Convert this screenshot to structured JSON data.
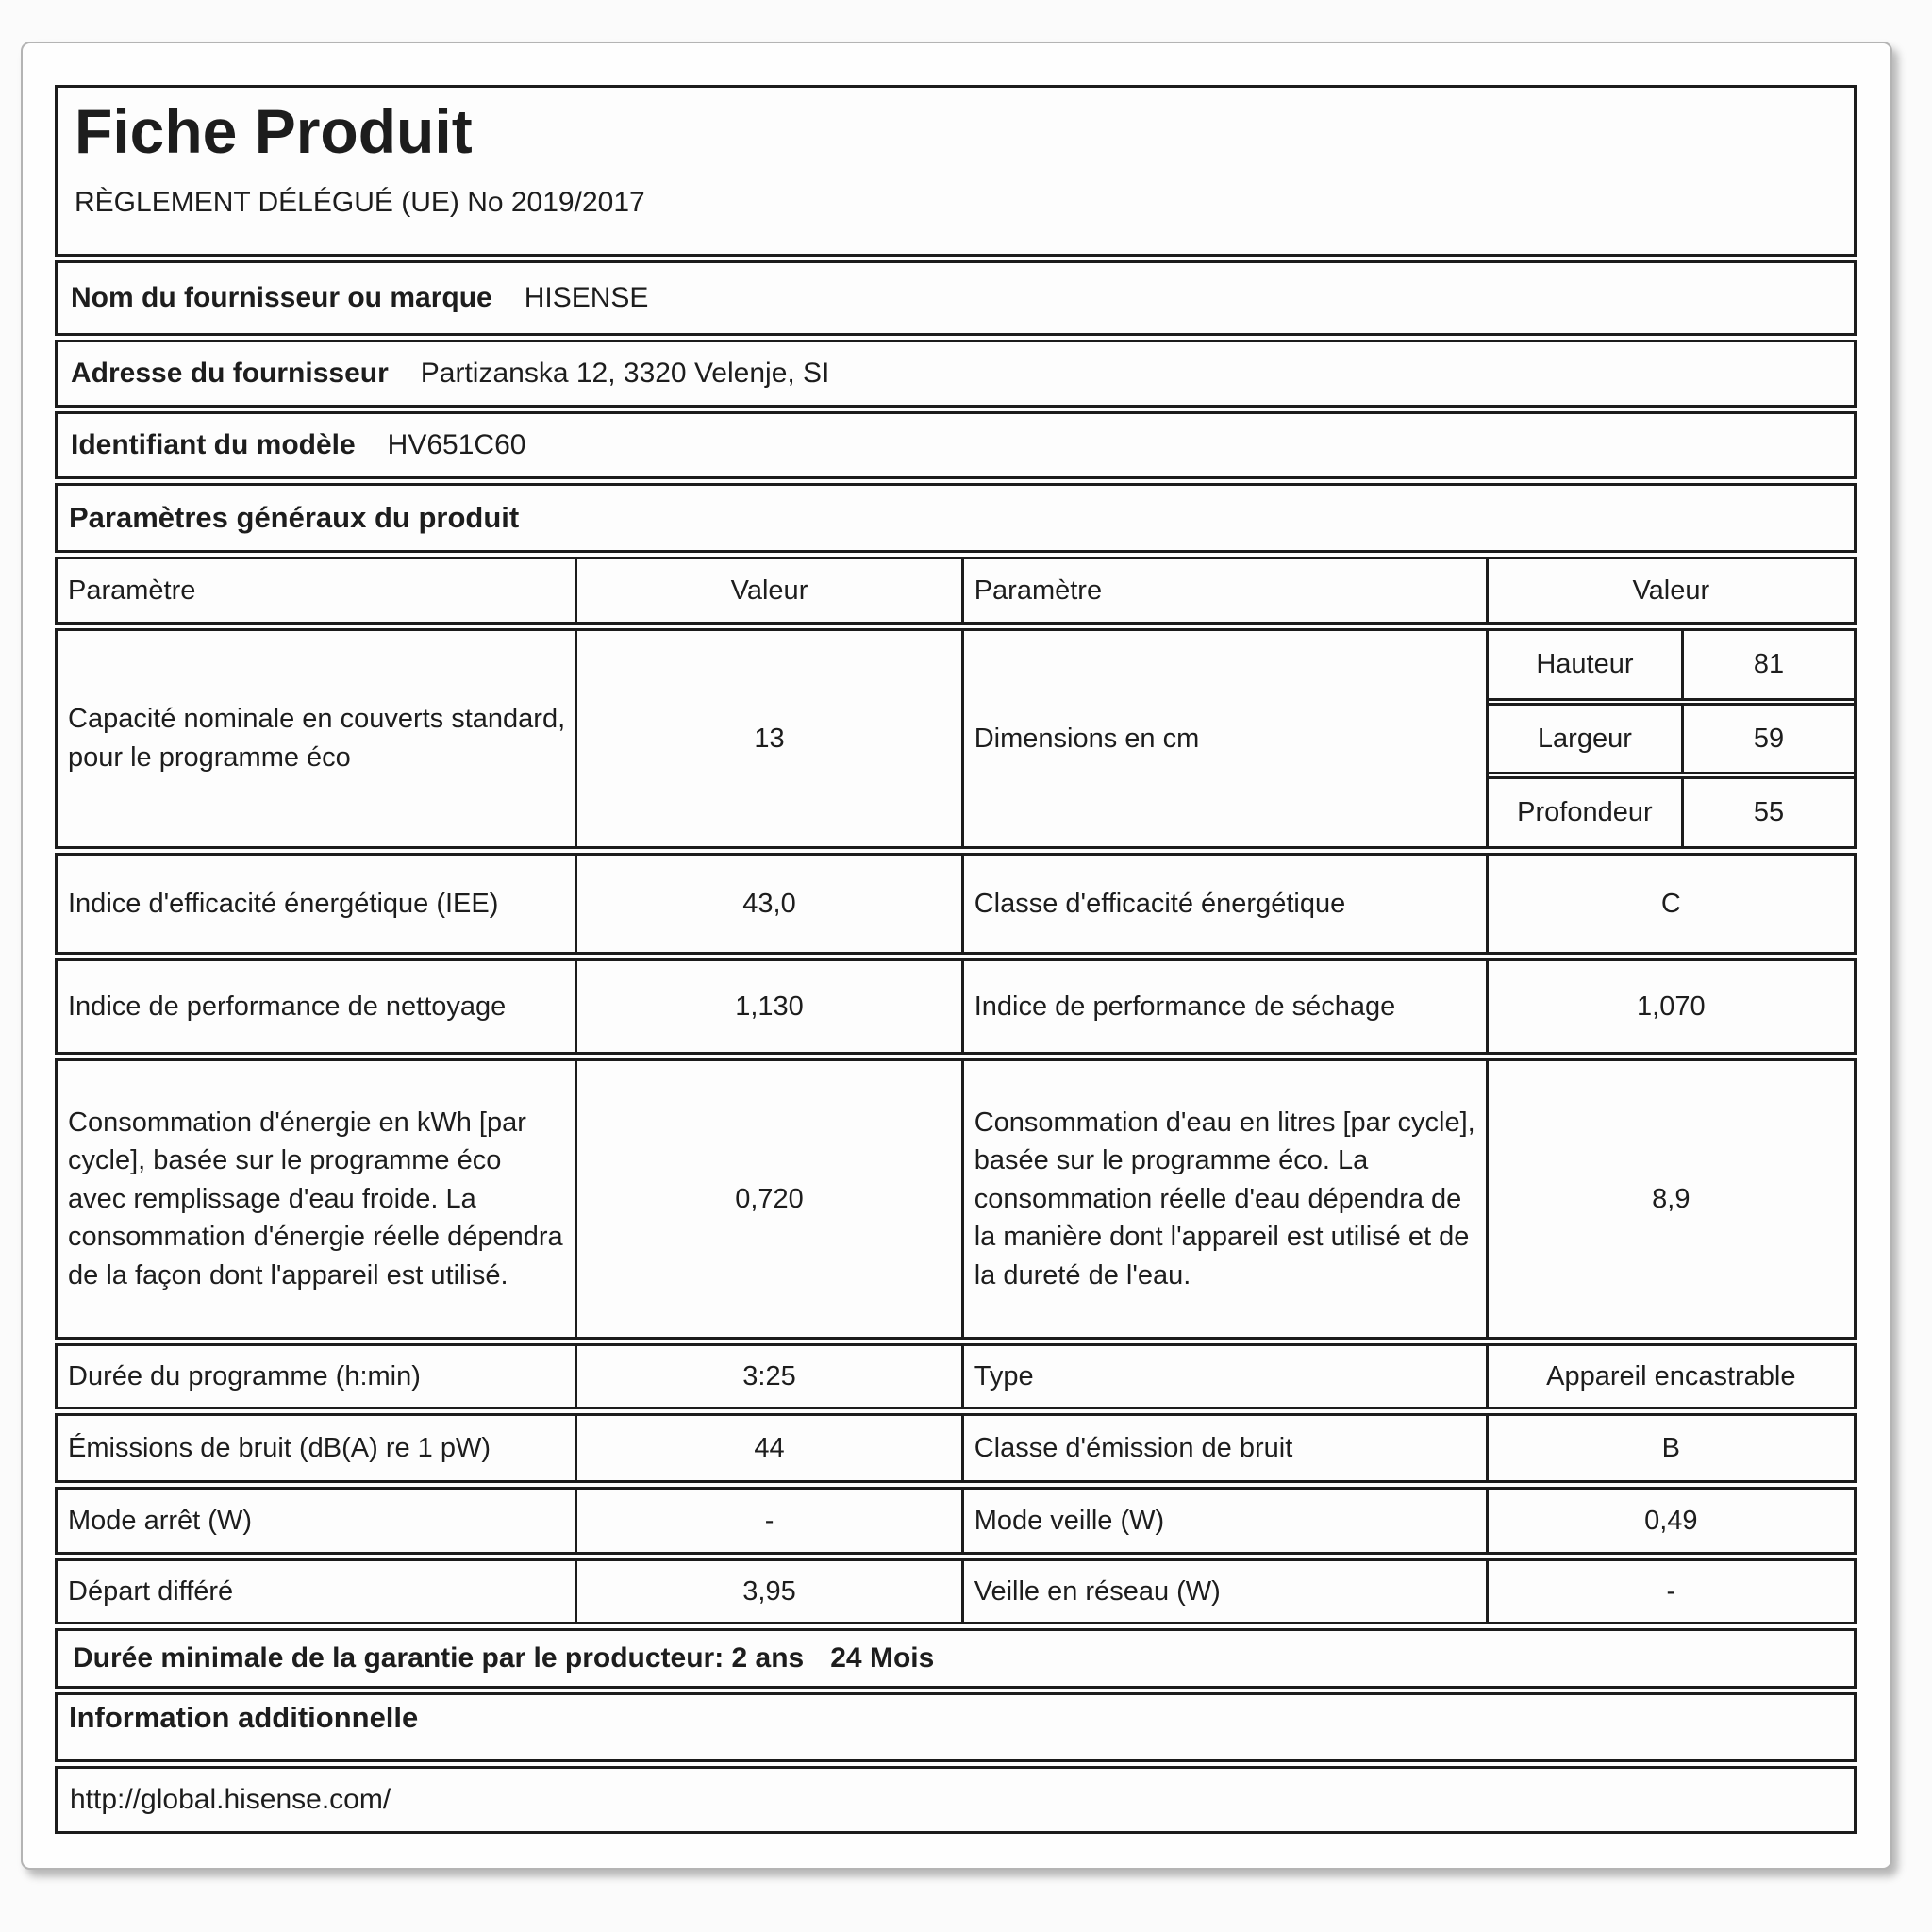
{
  "header": {
    "title": "Fiche Produit",
    "regulation": "RÈGLEMENT DÉLÉGUÉ (UE) No 2019/2017"
  },
  "supplier": {
    "brand_label": "Nom du fournisseur ou marque",
    "brand_value": "HISENSE",
    "address_label": "Adresse du fournisseur",
    "address_value": "Partizanska 12, 3320 Velenje, SI",
    "model_label": "Identifiant du modèle",
    "model_value": "HV651C60"
  },
  "section_title": "Paramètres généraux du produit",
  "table": {
    "col_headers": [
      "Paramètre",
      "Valeur",
      "Paramètre",
      "Valeur"
    ],
    "capacity": {
      "label": "Capacité nominale en couverts standard, pour le programme éco",
      "value": "13"
    },
    "dimensions": {
      "label": "Dimensions en cm",
      "rows": [
        {
          "name": "Hauteur",
          "value": "81"
        },
        {
          "name": "Largeur",
          "value": "59"
        },
        {
          "name": "Profondeur",
          "value": "55"
        }
      ]
    },
    "iee": {
      "label": "Indice d'efficacité énergétique (IEE)",
      "value": "43,0"
    },
    "energy_class": {
      "label": "Classe d'efficacité énergétique",
      "value": "C"
    },
    "cleaning_index": {
      "label": "Indice de performance de nettoyage",
      "value": "1,130"
    },
    "drying_index": {
      "label": "Indice de performance de séchage",
      "value": "1,070"
    },
    "energy_consumption": {
      "label": "Consommation d'énergie en kWh [par cycle], basée sur le programme éco avec remplissage d'eau froide. La consommation d'énergie réelle dépendra de la façon dont l'appareil est utilisé.",
      "value": "0,720"
    },
    "water_consumption": {
      "label": "Consommation d'eau en litres [par cycle], basée sur le programme éco. La consommation réelle d'eau dépendra de la manière dont l'appareil est utilisé et de la dureté de l'eau.",
      "value": "8,9"
    },
    "duration": {
      "label": "Durée du programme (h:min)",
      "value": "3:25"
    },
    "type": {
      "label": "Type",
      "value": "Appareil encastrable"
    },
    "noise": {
      "label": "Émissions de bruit (dB(A) re 1 pW)",
      "value": "44"
    },
    "noise_class": {
      "label": "Classe d'émission de bruit",
      "value": "B"
    },
    "off_mode": {
      "label": "Mode arrêt (W)",
      "value": "-"
    },
    "standby": {
      "label": "Mode veille (W)",
      "value": "0,49"
    },
    "delayed_start": {
      "label": "Départ différé",
      "value": "3,95"
    },
    "networked_standby": {
      "label": "Veille en réseau (W)",
      "value": "-"
    }
  },
  "footer": {
    "warranty_label": "Durée minimale de la garantie par le producteur: 2 ans",
    "warranty_value": "24 Mois",
    "additional_info_label": "Information additionnelle",
    "website": "http://global.hisense.com/"
  }
}
